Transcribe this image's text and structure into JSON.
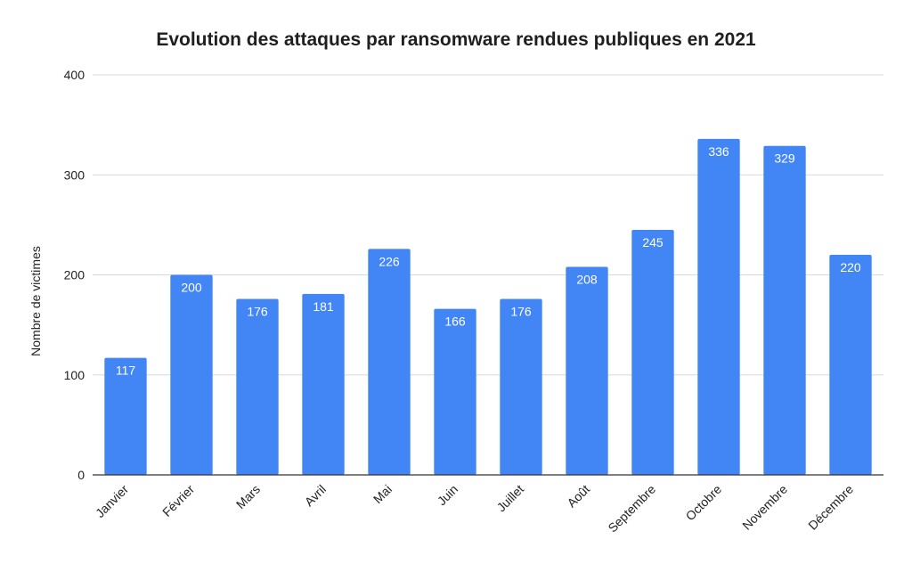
{
  "chart_data": {
    "type": "bar",
    "title": "Evolution des attaques par ransomware rendues publiques en 2021",
    "xlabel": "",
    "ylabel": "Nombre de victimes",
    "ylim": [
      0,
      400
    ],
    "yticks": [
      0,
      100,
      200,
      300,
      400
    ],
    "grid": true,
    "bar_color": "#4285f4",
    "data_label_color": "#ffffff",
    "categories": [
      "Janvier",
      "Février",
      "Mars",
      "Avril",
      "Mai",
      "Juin",
      "Juillet",
      "Août",
      "Septembre",
      "Octobre",
      "Novembre",
      "Décembre"
    ],
    "values": [
      117,
      200,
      176,
      181,
      226,
      166,
      176,
      208,
      245,
      336,
      329,
      220
    ]
  }
}
